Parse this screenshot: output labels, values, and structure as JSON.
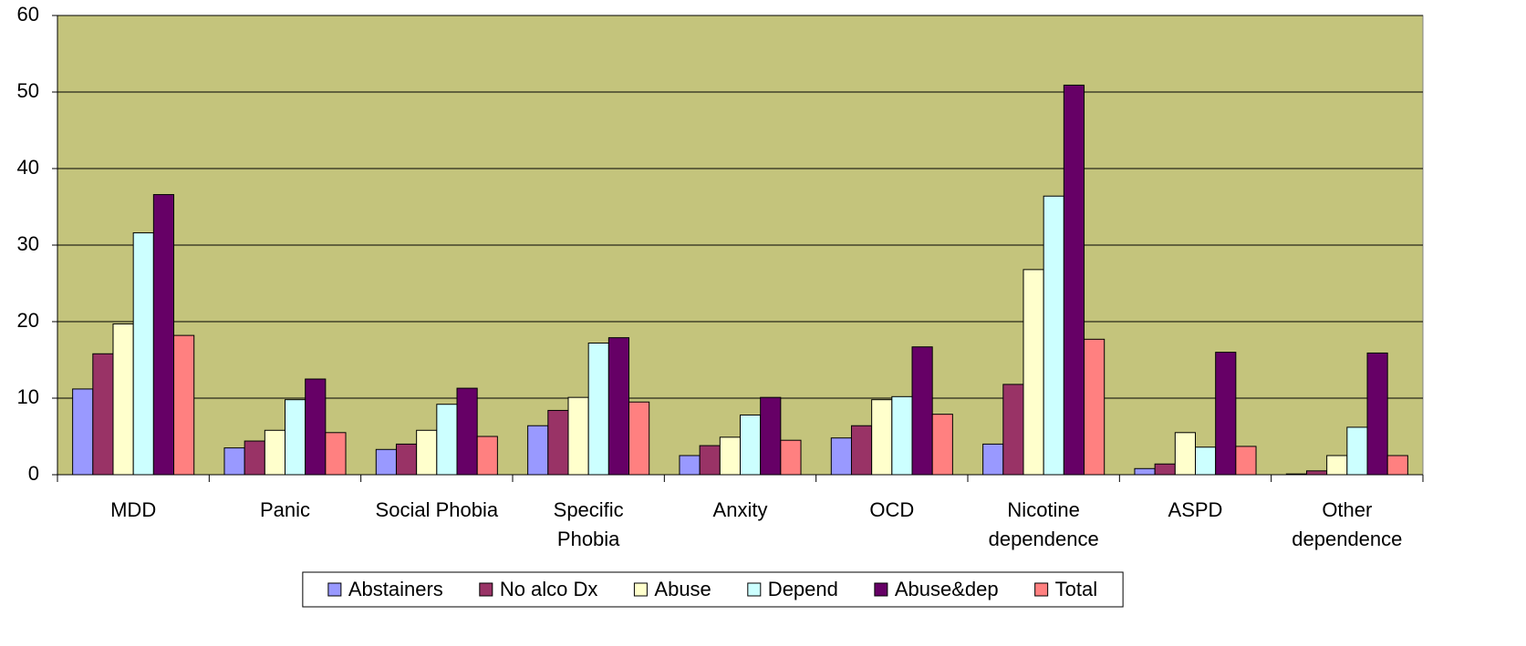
{
  "chart_data": {
    "type": "bar",
    "categories": [
      "MDD",
      "Panic",
      "Social Phobia",
      "Specific\nPhobia",
      "Anxity",
      "OCD",
      "Nicotine\ndependence",
      "ASPD",
      "Other\ndependence"
    ],
    "series": [
      {
        "name": "Abstainers",
        "color": "#9999ff",
        "values": [
          11.2,
          3.5,
          3.3,
          6.4,
          2.5,
          4.8,
          4.0,
          0.8,
          0.1
        ]
      },
      {
        "name": "No alco Dx",
        "color": "#993366",
        "values": [
          15.8,
          4.4,
          4.0,
          8.4,
          3.8,
          6.4,
          11.8,
          1.4,
          0.5
        ]
      },
      {
        "name": "Abuse",
        "color": "#ffffcc",
        "values": [
          19.7,
          5.8,
          5.8,
          10.1,
          4.9,
          9.8,
          26.8,
          5.5,
          2.5
        ]
      },
      {
        "name": "Depend",
        "color": "#ccffff",
        "values": [
          31.6,
          9.8,
          9.2,
          17.2,
          7.8,
          10.2,
          36.4,
          3.6,
          6.2
        ]
      },
      {
        "name": "Abuse&dep",
        "color": "#660066",
        "values": [
          36.6,
          12.5,
          11.3,
          17.9,
          10.1,
          16.7,
          50.9,
          16.0,
          15.9
        ]
      },
      {
        "name": "Total",
        "color": "#ff8080",
        "values": [
          18.2,
          5.5,
          5.0,
          9.5,
          4.5,
          7.9,
          17.7,
          3.7,
          2.5
        ]
      }
    ],
    "ylim": [
      0,
      60
    ],
    "yticks": [
      0,
      10,
      20,
      30,
      40,
      50,
      60
    ],
    "grid": true,
    "plot_background": "#c4c47c",
    "legend": "bottom"
  }
}
